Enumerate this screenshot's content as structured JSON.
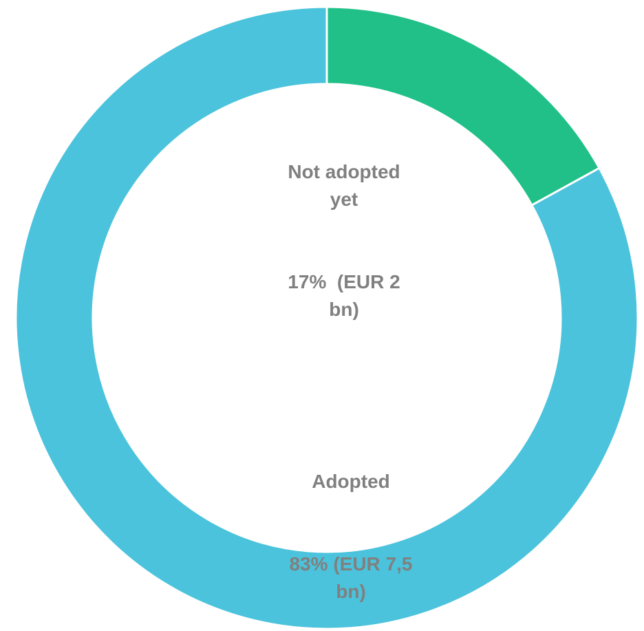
{
  "chart_data": {
    "type": "donut",
    "categories": [
      "Not adopted yet",
      "Adopted"
    ],
    "values": [
      17,
      83
    ],
    "value_labels": [
      "17%  (EUR 2 bn)",
      "83% (EUR 7,5 bn)"
    ],
    "colors": [
      "#20c088",
      "#4bc3dc"
    ]
  }
}
